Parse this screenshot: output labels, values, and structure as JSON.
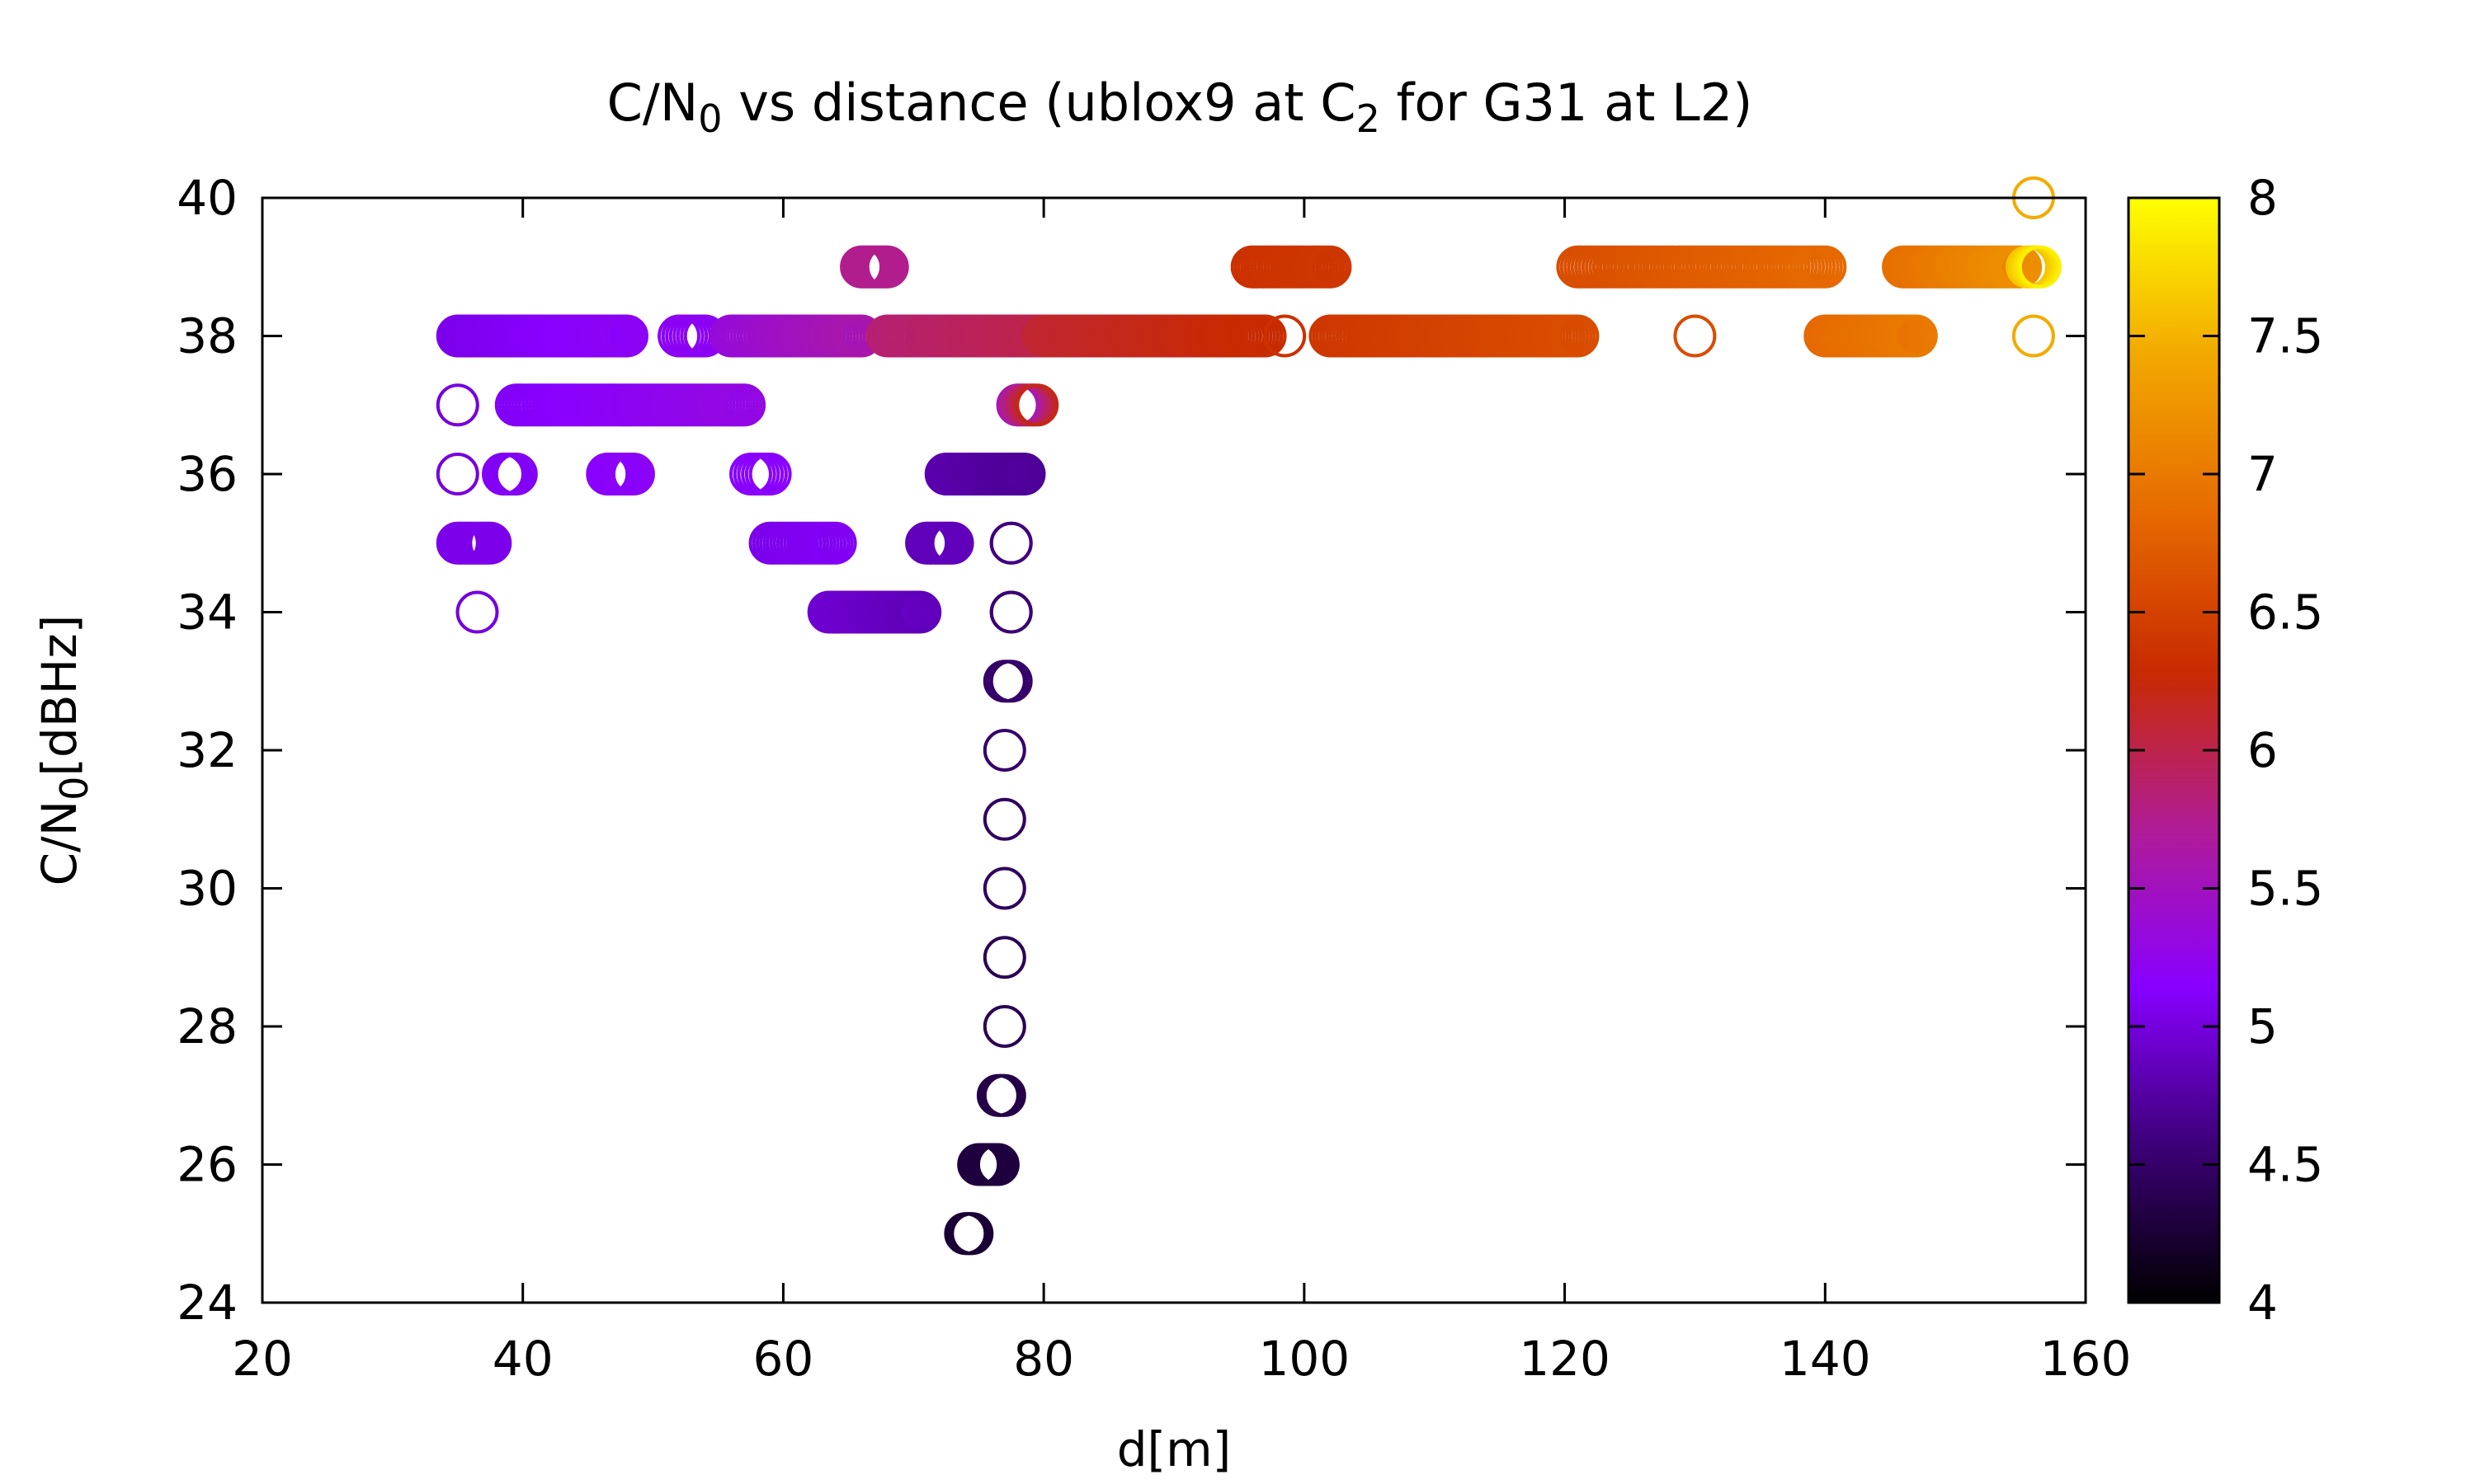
{
  "chart_data": {
    "type": "scatter",
    "title": {
      "prefix": "C/N",
      "sub1": "0",
      "middle": " vs distance (ublox9 at C",
      "sub2": "2",
      "suffix": " for G31 at L2)"
    },
    "xlabel": "d[m]",
    "ylabel": {
      "prefix": "C/N",
      "sub": "0",
      "suffix": "[dBHz]"
    },
    "xlim": [
      20,
      160
    ],
    "ylim": [
      24,
      40
    ],
    "xticks": [
      "20",
      "40",
      "60",
      "80",
      "100",
      "120",
      "140",
      "160"
    ],
    "yticks": [
      "24",
      "26",
      "28",
      "30",
      "32",
      "34",
      "36",
      "38",
      "40"
    ],
    "colorbar": {
      "range": [
        4,
        8
      ],
      "ticks": [
        "4",
        "4.5",
        "5",
        "5.5",
        "6",
        "6.5",
        "7",
        "7.5",
        "8"
      ],
      "palette_stops": [
        "#000000",
        "#3c0078",
        "#8800ff",
        "#b01c96",
        "#c82a00",
        "#e66a00",
        "#f2a800",
        "#ffff00"
      ]
    },
    "marker": "open-circle",
    "clusters": [
      {
        "y": 40,
        "x_from": 156,
        "x_to": 156,
        "c_from": 7.45,
        "c_to": 7.45,
        "n": 1
      },
      {
        "y": 39,
        "x_from": 66,
        "x_to": 68,
        "c_from": 5.75,
        "c_to": 5.75,
        "n": 12
      },
      {
        "y": 39,
        "x_from": 96,
        "x_to": 102,
        "c_from": 6.35,
        "c_to": 6.4,
        "n": 25
      },
      {
        "y": 39,
        "x_from": 121,
        "x_to": 140,
        "c_from": 6.6,
        "c_to": 6.85,
        "n": 70
      },
      {
        "y": 39,
        "x_from": 146,
        "x_to": 155,
        "c_from": 6.9,
        "c_to": 7.2,
        "n": 40
      },
      {
        "y": 39,
        "x_from": 155.5,
        "x_to": 156.5,
        "c_from": 7.6,
        "c_to": 7.9,
        "n": 6
      },
      {
        "y": 38,
        "x_from": 35,
        "x_to": 48,
        "c_from": 5.05,
        "c_to": 5.2,
        "n": 60
      },
      {
        "y": 38,
        "x_from": 52,
        "x_to": 54,
        "c_from": 5.2,
        "c_to": 5.2,
        "n": 8
      },
      {
        "y": 38,
        "x_from": 56,
        "x_to": 66,
        "c_from": 5.35,
        "c_to": 5.6,
        "n": 40
      },
      {
        "y": 38,
        "x_from": 68,
        "x_to": 80,
        "c_from": 5.85,
        "c_to": 6.0,
        "n": 50
      },
      {
        "y": 38,
        "x_from": 80,
        "x_to": 97,
        "c_from": 6.1,
        "c_to": 6.3,
        "n": 65
      },
      {
        "y": 38,
        "x_from": 98.5,
        "x_to": 98.5,
        "c_from": 6.35,
        "c_to": 6.35,
        "n": 1
      },
      {
        "y": 38,
        "x_from": 102,
        "x_to": 121,
        "c_from": 6.4,
        "c_to": 6.6,
        "n": 75
      },
      {
        "y": 38,
        "x_from": 130,
        "x_to": 130,
        "c_from": 6.6,
        "c_to": 6.6,
        "n": 1
      },
      {
        "y": 38,
        "x_from": 140,
        "x_to": 147,
        "c_from": 6.85,
        "c_to": 7.0,
        "n": 30
      },
      {
        "y": 38,
        "x_from": 156,
        "x_to": 156,
        "c_from": 7.45,
        "c_to": 7.45,
        "n": 1
      },
      {
        "y": 37,
        "x_from": 35,
        "x_to": 35,
        "c_from": 5.0,
        "c_to": 5.0,
        "n": 1
      },
      {
        "y": 37,
        "x_from": 39.5,
        "x_to": 57,
        "c_from": 5.1,
        "c_to": 5.3,
        "n": 70
      },
      {
        "y": 37,
        "x_from": 78,
        "x_to": 79.5,
        "c_from": 5.6,
        "c_to": 6.2,
        "n": 8
      },
      {
        "y": 36,
        "x_from": 35,
        "x_to": 35,
        "c_from": 5.0,
        "c_to": 5.0,
        "n": 1
      },
      {
        "y": 36,
        "x_from": 38.5,
        "x_to": 39.5,
        "c_from": 5.1,
        "c_to": 5.1,
        "n": 6
      },
      {
        "y": 36,
        "x_from": 46.5,
        "x_to": 48.5,
        "c_from": 5.15,
        "c_to": 5.2,
        "n": 10
      },
      {
        "y": 36,
        "x_from": 57.5,
        "x_to": 59,
        "c_from": 5.15,
        "c_to": 5.15,
        "n": 6
      },
      {
        "y": 36,
        "x_from": 72.5,
        "x_to": 78.5,
        "c_from": 4.8,
        "c_to": 4.7,
        "n": 40
      },
      {
        "y": 35,
        "x_from": 35,
        "x_to": 37.5,
        "c_from": 5.05,
        "c_to": 5.05,
        "n": 15
      },
      {
        "y": 35,
        "x_from": 59,
        "x_to": 64,
        "c_from": 5.05,
        "c_to": 5.1,
        "n": 20
      },
      {
        "y": 35,
        "x_from": 71,
        "x_to": 73,
        "c_from": 4.85,
        "c_to": 4.85,
        "n": 12
      },
      {
        "y": 35,
        "x_from": 77.5,
        "x_to": 77.5,
        "c_from": 4.6,
        "c_to": 4.6,
        "n": 2
      },
      {
        "y": 34,
        "x_from": 36.5,
        "x_to": 36.5,
        "c_from": 5.0,
        "c_to": 5.0,
        "n": 1
      },
      {
        "y": 34,
        "x_from": 63.5,
        "x_to": 70.5,
        "c_from": 4.95,
        "c_to": 4.85,
        "n": 35
      },
      {
        "y": 34,
        "x_from": 77.5,
        "x_to": 77.5,
        "c_from": 4.55,
        "c_to": 4.55,
        "n": 2
      },
      {
        "y": 33,
        "x_from": 77,
        "x_to": 77.5,
        "c_from": 4.5,
        "c_to": 4.5,
        "n": 3
      },
      {
        "y": 32,
        "x_from": 77,
        "x_to": 77,
        "c_from": 4.5,
        "c_to": 4.5,
        "n": 1
      },
      {
        "y": 31,
        "x_from": 77,
        "x_to": 77,
        "c_from": 4.45,
        "c_to": 4.45,
        "n": 1
      },
      {
        "y": 30,
        "x_from": 77,
        "x_to": 77,
        "c_from": 4.45,
        "c_to": 4.45,
        "n": 1
      },
      {
        "y": 29,
        "x_from": 77,
        "x_to": 77,
        "c_from": 4.4,
        "c_to": 4.4,
        "n": 1
      },
      {
        "y": 28,
        "x_from": 77,
        "x_to": 77,
        "c_from": 4.4,
        "c_to": 4.4,
        "n": 1
      },
      {
        "y": 27,
        "x_from": 76.5,
        "x_to": 77,
        "c_from": 4.35,
        "c_to": 4.35,
        "n": 4
      },
      {
        "y": 26,
        "x_from": 75,
        "x_to": 76.5,
        "c_from": 4.3,
        "c_to": 4.3,
        "n": 8
      },
      {
        "y": 25,
        "x_from": 74,
        "x_to": 74.5,
        "c_from": 4.25,
        "c_to": 4.25,
        "n": 5
      }
    ]
  }
}
